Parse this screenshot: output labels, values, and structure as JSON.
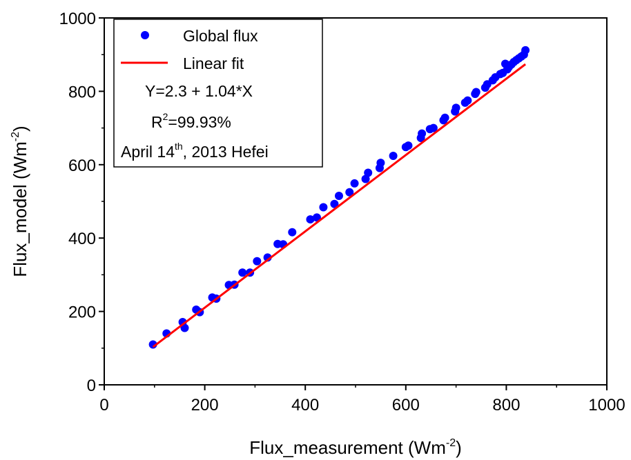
{
  "chart_data": {
    "type": "scatter",
    "xlabel": "Flux_measurement (Wm",
    "xlabel_sup": "-2",
    "xlabel_end": ")",
    "ylabel": "Flux_model (Wm",
    "ylabel_sup": "-2",
    "ylabel_end": ")",
    "xlim": [
      0,
      1000
    ],
    "ylim": [
      0,
      1000
    ],
    "xticks": [
      "0",
      "200",
      "400",
      "600",
      "800",
      "1000"
    ],
    "yticks": [
      "0",
      "200",
      "400",
      "600",
      "800",
      "1000"
    ],
    "grid": false,
    "legend_position": "top-left",
    "series": [
      {
        "name": "Global flux",
        "kind": "scatter",
        "color": "#0000ff",
        "points": [
          [
            97,
            110
          ],
          [
            124,
            140
          ],
          [
            156,
            171
          ],
          [
            160,
            155
          ],
          [
            183,
            205
          ],
          [
            190,
            198
          ],
          [
            215,
            238
          ],
          [
            223,
            235
          ],
          [
            248,
            272
          ],
          [
            259,
            273
          ],
          [
            275,
            306
          ],
          [
            290,
            306
          ],
          [
            304,
            337
          ],
          [
            325,
            347
          ],
          [
            345,
            384
          ],
          [
            356,
            383
          ],
          [
            374,
            416
          ],
          [
            410,
            451
          ],
          [
            423,
            456
          ],
          [
            436,
            484
          ],
          [
            458,
            493
          ],
          [
            467,
            515
          ],
          [
            488,
            525
          ],
          [
            498,
            549
          ],
          [
            520,
            561
          ],
          [
            525,
            578
          ],
          [
            548,
            591
          ],
          [
            550,
            605
          ],
          [
            575,
            624
          ],
          [
            600,
            648
          ],
          [
            605,
            652
          ],
          [
            630,
            673
          ],
          [
            632,
            685
          ],
          [
            648,
            697
          ],
          [
            655,
            700
          ],
          [
            675,
            721
          ],
          [
            678,
            728
          ],
          [
            698,
            745
          ],
          [
            700,
            755
          ],
          [
            718,
            769
          ],
          [
            723,
            775
          ],
          [
            738,
            793
          ],
          [
            740,
            798
          ],
          [
            758,
            810
          ],
          [
            762,
            819
          ],
          [
            773,
            830
          ],
          [
            778,
            838
          ],
          [
            788,
            847
          ],
          [
            793,
            850
          ],
          [
            798,
            875
          ],
          [
            802,
            860
          ],
          [
            805,
            866
          ],
          [
            810,
            873
          ],
          [
            815,
            880
          ],
          [
            820,
            885
          ],
          [
            825,
            890
          ],
          [
            830,
            895
          ],
          [
            835,
            900
          ],
          [
            838,
            912
          ]
        ]
      },
      {
        "name": "Linear fit",
        "kind": "line",
        "color": "#ff0000",
        "intercept": 2.3,
        "slope": 1.04,
        "x_range": [
          97,
          838
        ]
      }
    ],
    "annotations": {
      "equation": "Y=2.3 + 1.04*X",
      "r2_prefix": "R",
      "r2_sup": "2",
      "r2_value": "=99.93%",
      "date_prefix": "April 14",
      "date_sup": "th",
      "date_suffix": ", 2013 Hefei"
    }
  }
}
